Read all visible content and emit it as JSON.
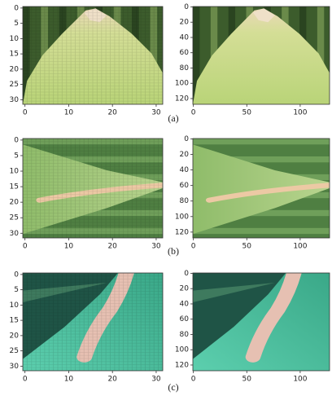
{
  "figure": {
    "captions": [
      "(a)",
      "(b)",
      "(c)"
    ],
    "panels": [
      {
        "xlim": [
          -0.5,
          31.5
        ],
        "ylim": [
          31.5,
          -0.5
        ],
        "xticks": [
          0,
          10,
          20,
          30
        ],
        "yticks": [
          0,
          5,
          10,
          15,
          20,
          25,
          30
        ]
      },
      {
        "xlim": [
          -0.5,
          127.5
        ],
        "ylim": [
          127.5,
          -0.5
        ],
        "xticks": [
          0,
          50,
          100
        ],
        "yticks": [
          0,
          20,
          40,
          60,
          80,
          100,
          120
        ]
      },
      {
        "xlim": [
          -0.5,
          31.5
        ],
        "ylim": [
          31.5,
          -0.5
        ],
        "xticks": [
          0,
          10,
          20,
          30
        ],
        "yticks": [
          0,
          5,
          10,
          15,
          20,
          25,
          30
        ]
      },
      {
        "xlim": [
          -0.5,
          127.5
        ],
        "ylim": [
          127.5,
          -0.5
        ],
        "xticks": [
          0,
          50,
          100
        ],
        "yticks": [
          0,
          20,
          40,
          60,
          80,
          100,
          120
        ]
      },
      {
        "xlim": [
          -0.5,
          31.5
        ],
        "ylim": [
          31.5,
          -0.5
        ],
        "xticks": [
          0,
          10,
          20,
          30
        ],
        "yticks": [
          0,
          5,
          10,
          15,
          20,
          25,
          30
        ]
      },
      {
        "xlim": [
          -0.5,
          127.5
        ],
        "ylim": [
          127.5,
          -0.5
        ],
        "xticks": [
          0,
          50,
          100
        ],
        "yticks": [
          0,
          20,
          40,
          60,
          80,
          100,
          120
        ]
      }
    ]
  }
}
